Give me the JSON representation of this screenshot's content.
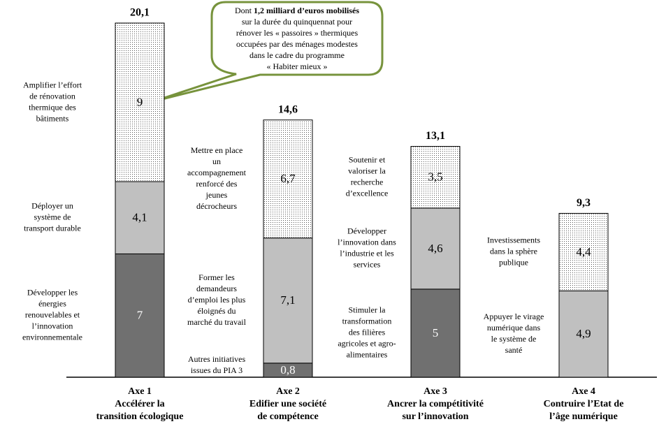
{
  "chart_data": {
    "type": "stacked_bar",
    "annotation": [
      [
        "Dont ",
        "1,2 milliard d’euros mobilisés"
      ],
      [
        "sur la durée du quinquennat pour"
      ],
      [
        "rénover les « passoires » thermiques"
      ],
      [
        "occupées par des ménages modestes"
      ],
      [
        "dans le cadre du programme"
      ],
      [
        "« Habiter mieux »"
      ]
    ],
    "bars": [
      {
        "category": [
          "Axe 1",
          "Accélérer la",
          "transition écologique"
        ],
        "total": 20.1,
        "total_label": "20,1",
        "segments": [
          {
            "value": 7,
            "value_label": "7",
            "fill": "#707070",
            "value_color": "#ffffff",
            "label": [
              "Développer les",
              "énergies",
              "renouvelables et",
              "l’innovation",
              "environnementale"
            ]
          },
          {
            "value": 4.1,
            "value_label": "4,1",
            "fill": "#c0c0c0",
            "value_color": "#000000",
            "label": [
              "Déployer un",
              "système de",
              "transport durable"
            ]
          },
          {
            "value": 9,
            "value_label": "9",
            "fill": "dots",
            "value_color": "#000000",
            "label": [
              "Amplifier l’effort",
              "de rénovation",
              "thermique des",
              "bâtiments"
            ]
          }
        ]
      },
      {
        "category": [
          "Axe 2",
          "Edifier une société",
          "de compétence"
        ],
        "total": 14.6,
        "total_label": "14,6",
        "segments": [
          {
            "value": 0.8,
            "value_label": "0,8",
            "fill": "#707070",
            "value_color": "#ffffff",
            "label": [
              "Autres initiatives",
              "issues du PIA 3"
            ]
          },
          {
            "value": 7.1,
            "value_label": "7,1",
            "fill": "#c0c0c0",
            "value_color": "#000000",
            "label": [
              "Former les",
              "demandeurs",
              "d’emploi les plus",
              "éloignés du",
              "marché du travail"
            ]
          },
          {
            "value": 6.7,
            "value_label": "6,7",
            "fill": "dots",
            "value_color": "#000000",
            "label": [
              "Mettre en place",
              "un",
              "accompagnement",
              "renforcé des",
              "jeunes",
              "décrocheurs"
            ]
          }
        ]
      },
      {
        "category": [
          "Axe 3",
          "Ancrer la compétitivité",
          "sur l’innovation"
        ],
        "total": 13.1,
        "total_label": "13,1",
        "segments": [
          {
            "value": 5,
            "value_label": "5",
            "fill": "#707070",
            "value_color": "#ffffff",
            "label": [
              "Stimuler la",
              "transformation",
              "des filières",
              "agricoles et agro-",
              "alimentaires"
            ]
          },
          {
            "value": 4.6,
            "value_label": "4,6",
            "fill": "#c0c0c0",
            "value_color": "#000000",
            "label": [
              "Développer",
              "l’innovation dans",
              "l’industrie et les",
              "services"
            ]
          },
          {
            "value": 3.5,
            "value_label": "3,5",
            "fill": "dots",
            "value_color": "#000000",
            "label": [
              "Soutenir et",
              "valoriser la",
              "recherche",
              "d’excellence"
            ]
          }
        ]
      },
      {
        "category": [
          "Axe 4",
          "Contruire l’Etat de",
          "l’âge numérique"
        ],
        "total": 9.3,
        "total_label": "9,3",
        "segments": [
          {
            "value": 4.9,
            "value_label": "4,9",
            "fill": "#c0c0c0",
            "value_color": "#000000",
            "label": [
              "Appuyer le virage",
              "numérique dans",
              "le système de",
              "santé"
            ]
          },
          {
            "value": 4.4,
            "value_label": "4,4",
            "fill": "dots",
            "value_color": "#000000",
            "label": [
              "Investissements",
              "dans la sphère",
              "publique"
            ]
          }
        ]
      }
    ]
  }
}
